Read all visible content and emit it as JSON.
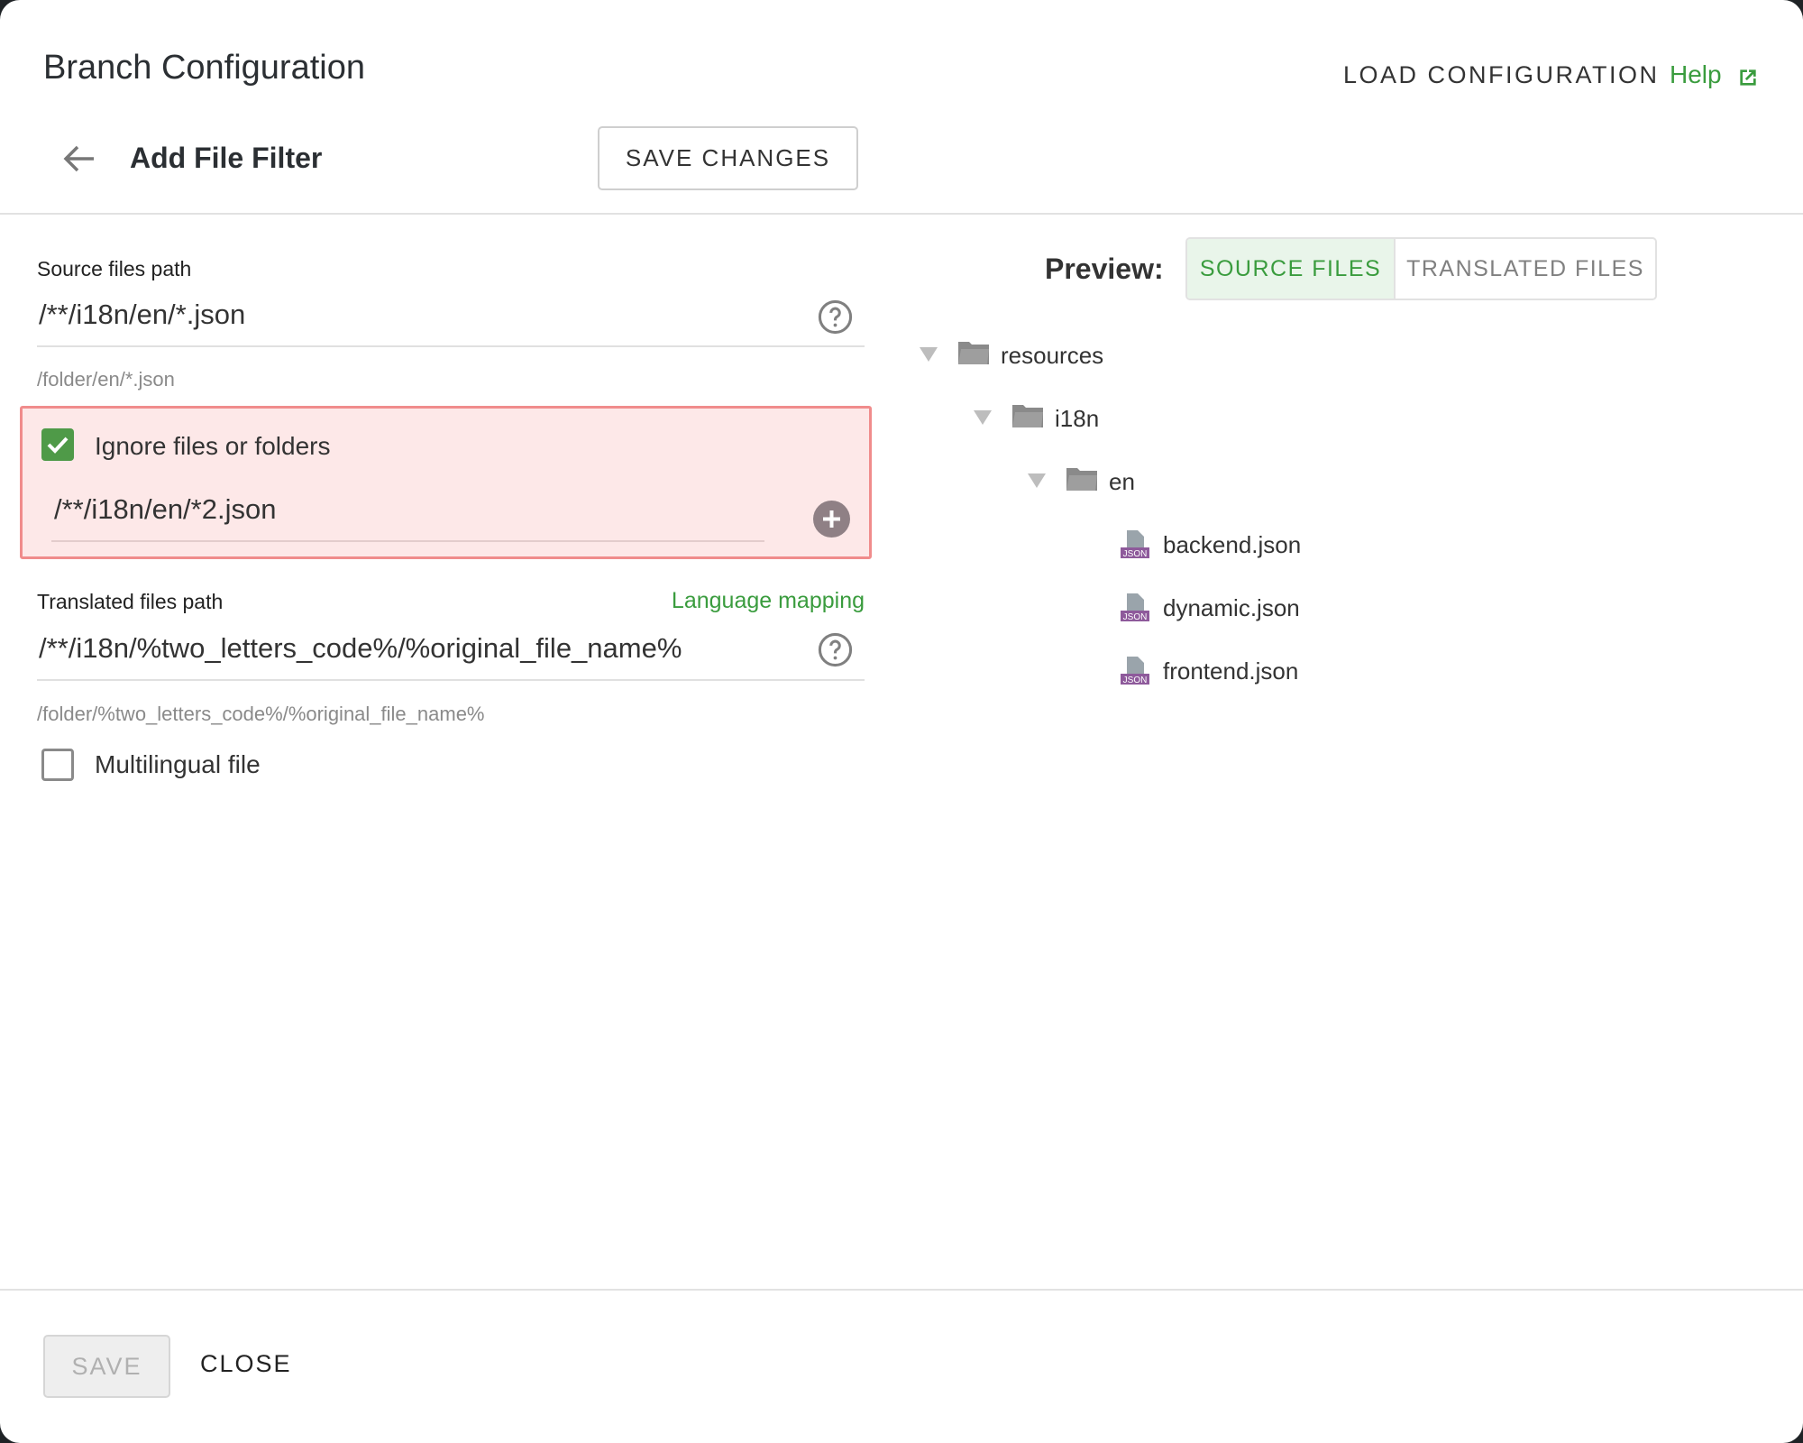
{
  "header": {
    "title": "Branch Configuration",
    "load_label": "LOAD CONFIGURATION",
    "help_label": "Help"
  },
  "subheader": {
    "title": "Add File Filter",
    "save_changes_label": "SAVE CHANGES"
  },
  "form": {
    "source": {
      "label": "Source files path",
      "value": "/**/i18n/en/*.json",
      "hint": "/folder/en/*.json"
    },
    "ignore": {
      "label": "Ignore files or folders",
      "checked": true,
      "value": "/**/i18n/en/*2.json"
    },
    "translated": {
      "label": "Translated files path",
      "link": "Language mapping",
      "value": "/**/i18n/%two_letters_code%/%original_file_name%",
      "hint": "/folder/%two_letters_code%/%original_file_name%"
    },
    "multilingual": {
      "label": "Multilingual file",
      "checked": false
    }
  },
  "preview": {
    "label": "Preview:",
    "tabs": [
      {
        "label": "SOURCE FILES",
        "active": true
      },
      {
        "label": "TRANSLATED FILES",
        "active": false
      }
    ],
    "tree": [
      {
        "name": "resources",
        "type": "folder"
      },
      {
        "name": "i18n",
        "type": "folder"
      },
      {
        "name": "en",
        "type": "folder"
      },
      {
        "name": "backend.json",
        "type": "json"
      },
      {
        "name": "dynamic.json",
        "type": "json"
      },
      {
        "name": "frontend.json",
        "type": "json"
      }
    ],
    "json_badge": "JSON"
  },
  "footer": {
    "save_label": "SAVE",
    "close_label": "CLOSE"
  },
  "colors": {
    "accent": "#3a9c3e",
    "ignore_bg": "#fde8e8",
    "ignore_border": "#f08c8c"
  }
}
